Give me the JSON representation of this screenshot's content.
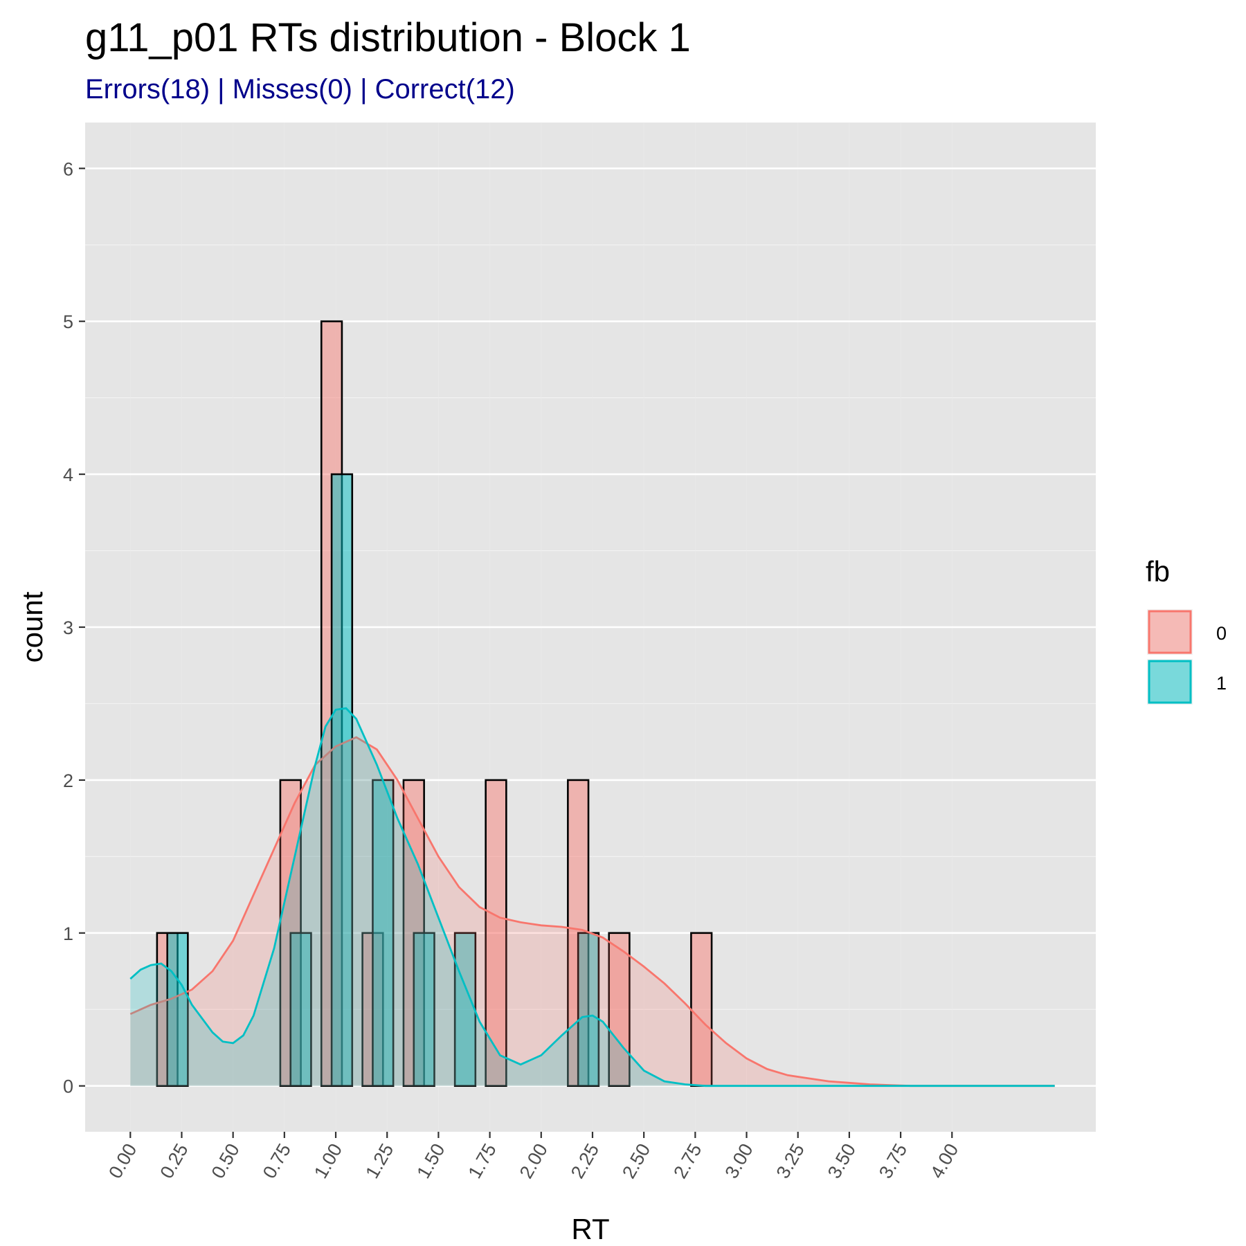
{
  "chart_data": {
    "type": "bar",
    "title": "g11_p01 RTs distribution - Block 1",
    "subtitle": "Errors(18) | Misses(0) | Correct(12)",
    "subtitle_color": "#00008b",
    "xlabel": "RT",
    "ylabel": "count",
    "x_ticks": [
      "0.00",
      "0.25",
      "0.50",
      "0.75",
      "1.00",
      "1.25",
      "1.50",
      "1.75",
      "2.00",
      "2.25",
      "2.50",
      "2.75",
      "3.00",
      "3.25",
      "3.50",
      "3.75",
      "4.00"
    ],
    "y_ticks": [
      "0",
      "1",
      "2",
      "3",
      "4",
      "5",
      "6"
    ],
    "xlim": [
      -0.22,
      4.7
    ],
    "ylim": [
      -0.3,
      6.3
    ],
    "grid": true,
    "bin_width": 0.1,
    "legend": {
      "title": "fb",
      "position": "right",
      "entries": [
        "0",
        "1"
      ]
    },
    "series": [
      {
        "name": "0",
        "color": "#f8766d",
        "bins": [
          {
            "x": 0.18,
            "count": 1
          },
          {
            "x": 0.78,
            "count": 2
          },
          {
            "x": 0.98,
            "count": 5
          },
          {
            "x": 1.18,
            "count": 1
          },
          {
            "x": 1.38,
            "count": 2
          },
          {
            "x": 1.78,
            "count": 2
          },
          {
            "x": 2.18,
            "count": 2
          },
          {
            "x": 2.38,
            "count": 1
          },
          {
            "x": 2.78,
            "count": 1
          }
        ],
        "density": [
          [
            0.0,
            0.47
          ],
          [
            0.1,
            0.53
          ],
          [
            0.2,
            0.57
          ],
          [
            0.3,
            0.63
          ],
          [
            0.4,
            0.75
          ],
          [
            0.5,
            0.95
          ],
          [
            0.6,
            1.25
          ],
          [
            0.7,
            1.55
          ],
          [
            0.8,
            1.85
          ],
          [
            0.9,
            2.1
          ],
          [
            1.0,
            2.22
          ],
          [
            1.1,
            2.28
          ],
          [
            1.2,
            2.2
          ],
          [
            1.3,
            2.0
          ],
          [
            1.4,
            1.75
          ],
          [
            1.5,
            1.5
          ],
          [
            1.6,
            1.3
          ],
          [
            1.7,
            1.17
          ],
          [
            1.8,
            1.1
          ],
          [
            1.9,
            1.07
          ],
          [
            2.0,
            1.05
          ],
          [
            2.1,
            1.04
          ],
          [
            2.2,
            1.02
          ],
          [
            2.3,
            0.97
          ],
          [
            2.4,
            0.88
          ],
          [
            2.5,
            0.78
          ],
          [
            2.6,
            0.67
          ],
          [
            2.7,
            0.54
          ],
          [
            2.8,
            0.4
          ],
          [
            2.9,
            0.28
          ],
          [
            3.0,
            0.18
          ],
          [
            3.1,
            0.11
          ],
          [
            3.2,
            0.07
          ],
          [
            3.3,
            0.05
          ],
          [
            3.4,
            0.03
          ],
          [
            3.5,
            0.02
          ],
          [
            3.6,
            0.01
          ],
          [
            3.7,
            0.005
          ],
          [
            3.8,
            0.0
          ],
          [
            4.5,
            0.0
          ]
        ]
      },
      {
        "name": "1",
        "color": "#00bfc4",
        "bins": [
          {
            "x": 0.23,
            "count": 1
          },
          {
            "x": 0.83,
            "count": 1
          },
          {
            "x": 1.03,
            "count": 4
          },
          {
            "x": 1.23,
            "count": 2
          },
          {
            "x": 1.43,
            "count": 1
          },
          {
            "x": 1.63,
            "count": 1
          },
          {
            "x": 2.23,
            "count": 1
          }
        ],
        "density": [
          [
            0.0,
            0.7
          ],
          [
            0.05,
            0.76
          ],
          [
            0.1,
            0.79
          ],
          [
            0.15,
            0.8
          ],
          [
            0.2,
            0.75
          ],
          [
            0.25,
            0.66
          ],
          [
            0.3,
            0.53
          ],
          [
            0.4,
            0.35
          ],
          [
            0.45,
            0.29
          ],
          [
            0.5,
            0.28
          ],
          [
            0.55,
            0.33
          ],
          [
            0.6,
            0.46
          ],
          [
            0.7,
            0.9
          ],
          [
            0.8,
            1.5
          ],
          [
            0.9,
            2.1
          ],
          [
            0.95,
            2.35
          ],
          [
            1.0,
            2.46
          ],
          [
            1.05,
            2.47
          ],
          [
            1.1,
            2.4
          ],
          [
            1.2,
            2.1
          ],
          [
            1.3,
            1.75
          ],
          [
            1.4,
            1.45
          ],
          [
            1.5,
            1.1
          ],
          [
            1.6,
            0.75
          ],
          [
            1.7,
            0.42
          ],
          [
            1.8,
            0.2
          ],
          [
            1.9,
            0.14
          ],
          [
            2.0,
            0.2
          ],
          [
            2.1,
            0.33
          ],
          [
            2.2,
            0.45
          ],
          [
            2.25,
            0.46
          ],
          [
            2.3,
            0.42
          ],
          [
            2.4,
            0.25
          ],
          [
            2.5,
            0.1
          ],
          [
            2.6,
            0.03
          ],
          [
            2.7,
            0.01
          ],
          [
            2.8,
            0.0
          ],
          [
            4.5,
            0.0
          ]
        ]
      }
    ]
  }
}
